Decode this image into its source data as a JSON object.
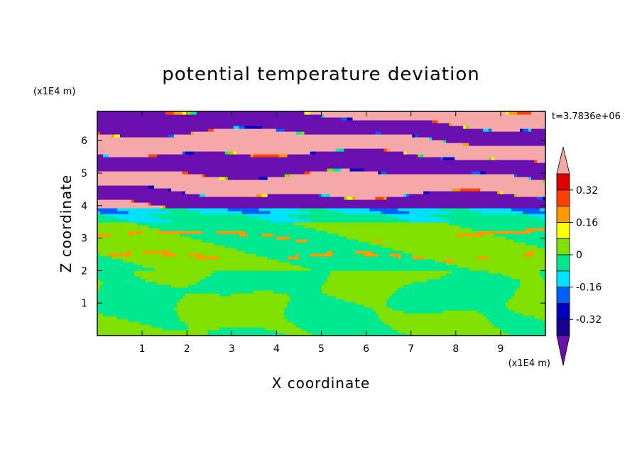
{
  "chart_data": {
    "type": "heatmap",
    "title": "potential temperature deviation",
    "xlabel": "X coordinate",
    "ylabel": "Z coordinate",
    "x_unit": "(x1E4 m)",
    "y_unit": "(x1E4 m)",
    "time_label": "t=3.7836e+06",
    "xlim": [
      0,
      10
    ],
    "ylim": [
      0,
      6.9
    ],
    "x_ticks": [
      1,
      2,
      3,
      4,
      5,
      6,
      7,
      8,
      9
    ],
    "y_ticks": [
      1,
      2,
      3,
      4,
      5,
      6
    ],
    "x_tick_labels": [
      "1",
      "2",
      "3",
      "4",
      "5",
      "6",
      "7",
      "8",
      "9"
    ],
    "y_tick_labels": [
      "1",
      "2",
      "3",
      "4",
      "5",
      "6"
    ],
    "colorbar": {
      "levels": [
        -0.4,
        -0.32,
        -0.24,
        -0.16,
        -0.08,
        0,
        0.08,
        0.16,
        0.24,
        0.32,
        0.4
      ],
      "tick_values": [
        -0.32,
        -0.16,
        0,
        0.16,
        0.32
      ],
      "tick_labels": [
        "-0.32",
        "-0.16",
        "0",
        "0.16",
        "0.32"
      ],
      "colors": [
        "#1a0090",
        "#0000c0",
        "#0060ff",
        "#00e0ff",
        "#00e890",
        "#80e000",
        "#ffff00",
        "#ff9900",
        "#ff4000",
        "#e00000"
      ],
      "under_color": "#6a0fb0",
      "over_color": "#f4a8a8",
      "extend": "both"
    },
    "field_description_layers": [
      {
        "z_range": [
          0,
          2.0
        ],
        "dominant_value_range": [
          -0.08,
          0.08
        ]
      },
      {
        "z_range": [
          2.0,
          2.05
        ],
        "dominant_value_range": [
          -0.32,
          -0.16
        ]
      },
      {
        "z_range": [
          2.05,
          3.5
        ],
        "dominant_value_range": [
          -0.08,
          0.08
        ]
      },
      {
        "z_range": [
          3.5,
          3.9
        ],
        "dominant_value_range": [
          -0.16,
          -0.08
        ]
      },
      {
        "z_range": [
          3.9,
          6.9
        ],
        "dominant_value_range": [
          -0.4,
          0.4
        ]
      }
    ]
  }
}
